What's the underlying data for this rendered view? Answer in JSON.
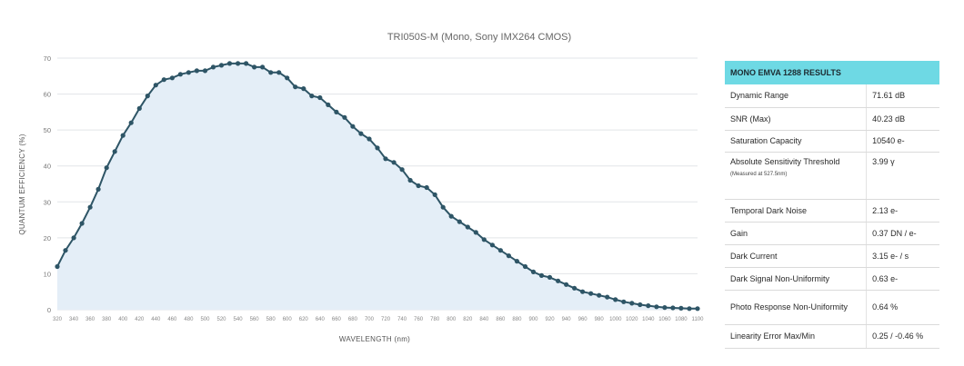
{
  "chart_data": {
    "type": "line",
    "title": "TRI050S-M (Mono, Sony IMX264 CMOS)",
    "xlabel": "WAVELENGTH (nm)",
    "ylabel": "QUANTUM EFFICIENCY (%)",
    "xlim": [
      320,
      1100
    ],
    "ylim": [
      0,
      70
    ],
    "yticks": [
      0,
      10,
      20,
      30,
      40,
      50,
      60,
      70
    ],
    "xticks": [
      320,
      340,
      360,
      380,
      400,
      420,
      440,
      460,
      480,
      500,
      520,
      540,
      560,
      580,
      600,
      620,
      640,
      660,
      680,
      700,
      720,
      740,
      760,
      780,
      800,
      820,
      840,
      860,
      880,
      900,
      920,
      940,
      960,
      980,
      1000,
      1020,
      1040,
      1060,
      1080,
      1100
    ],
    "grid": "horizontal",
    "area_fill": true,
    "x": [
      320,
      330,
      340,
      350,
      360,
      370,
      380,
      390,
      400,
      410,
      420,
      430,
      440,
      450,
      460,
      470,
      480,
      490,
      500,
      510,
      520,
      530,
      540,
      550,
      560,
      570,
      580,
      590,
      600,
      610,
      620,
      630,
      640,
      650,
      660,
      670,
      680,
      690,
      700,
      710,
      720,
      730,
      740,
      750,
      760,
      770,
      780,
      790,
      800,
      810,
      820,
      830,
      840,
      850,
      860,
      870,
      880,
      890,
      900,
      910,
      920,
      930,
      940,
      950,
      960,
      970,
      980,
      990,
      1000,
      1010,
      1020,
      1030,
      1040,
      1050,
      1060,
      1070,
      1080,
      1090,
      1100
    ],
    "y": [
      12,
      16.5,
      20,
      24,
      28.5,
      33.5,
      39.5,
      44,
      48.5,
      52,
      56,
      59.5,
      62.5,
      64,
      64.5,
      65.5,
      66,
      66.5,
      66.5,
      67.5,
      68,
      68.5,
      68.5,
      68.5,
      67.5,
      67.5,
      66,
      66,
      64.5,
      62,
      61.5,
      59.5,
      59,
      57,
      55,
      53.5,
      51,
      49,
      47.5,
      45,
      42,
      41,
      39,
      36,
      34.5,
      34,
      32,
      28.5,
      26,
      24.5,
      23,
      21.5,
      19.5,
      18,
      16.5,
      15,
      13.5,
      12,
      10.5,
      9.5,
      9,
      8,
      7,
      6,
      5,
      4.5,
      4,
      3.5,
      2.8,
      2.2,
      1.8,
      1.4,
      1.1,
      0.8,
      0.6,
      0.5,
      0.4,
      0.3,
      0.3
    ]
  },
  "table": {
    "header": "MONO EMVA 1288 RESULTS",
    "rows": [
      {
        "param": "Dynamic Range",
        "value": "71.61 dB"
      },
      {
        "param": "SNR (Max)",
        "value": "40.23 dB"
      },
      {
        "param": "Saturation Capacity",
        "value": "10540 e-"
      },
      {
        "param": "Absolute Sensitivity Threshold",
        "note": "(Measured at 527.5nm)",
        "value": "3.99 γ"
      },
      {
        "param": "Temporal Dark Noise",
        "value": "2.13 e-"
      },
      {
        "param": "Gain",
        "value": "0.37 DN / e-"
      },
      {
        "param": "Dark Current",
        "value": "3.15 e- / s"
      },
      {
        "param": "Dark Signal Non-Uniformity",
        "value": "0.63 e-"
      },
      {
        "param": "Photo Response Non-Uniformity",
        "value": "0.64 %"
      },
      {
        "param": "Linearity Error Max/Min",
        "value": "0.25 / -0.46 %"
      }
    ]
  }
}
